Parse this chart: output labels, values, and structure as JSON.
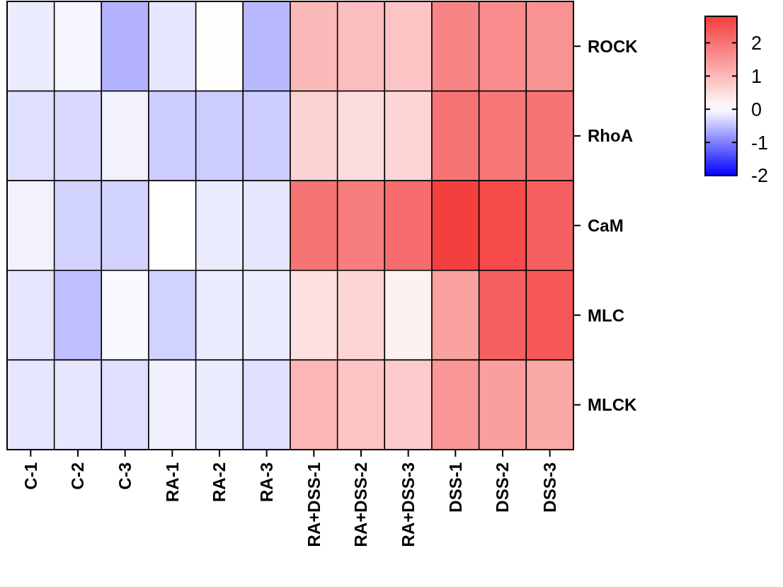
{
  "chart_data": {
    "type": "heatmap",
    "categories": [
      "C-1",
      "C-2",
      "C-3",
      "RA-1",
      "RA-2",
      "RA-3",
      "RA+DSS-1",
      "RA+DSS-2",
      "RA+DSS-3",
      "DSS-1",
      "DSS-2",
      "DSS-3"
    ],
    "y_categories": [
      "ROCK",
      "RhoA",
      "CaM",
      "MLC",
      "MLCK"
    ],
    "cells": [
      [
        -0.15,
        -0.08,
        -0.6,
        -0.2,
        0.05,
        -0.55,
        1.0,
        0.95,
        0.85,
        1.75,
        1.65,
        1.55
      ],
      [
        -0.25,
        -0.3,
        -0.1,
        -0.4,
        -0.4,
        -0.4,
        0.65,
        0.5,
        0.6,
        2.0,
        1.95,
        2.0
      ],
      [
        -0.1,
        -0.35,
        -0.35,
        0.0,
        -0.15,
        -0.2,
        2.0,
        1.85,
        2.1,
        2.75,
        2.6,
        2.3
      ],
      [
        -0.2,
        -0.5,
        -0.05,
        -0.35,
        -0.15,
        -0.15,
        0.45,
        0.6,
        0.2,
        1.35,
        2.3,
        2.4
      ],
      [
        -0.2,
        -0.2,
        -0.25,
        -0.12,
        -0.15,
        -0.25,
        1.05,
        0.85,
        0.75,
        1.5,
        1.4,
        1.25
      ]
    ],
    "clim": [
      -2,
      2.8
    ],
    "cticks": [
      2,
      1,
      0,
      -1,
      -2
    ]
  }
}
